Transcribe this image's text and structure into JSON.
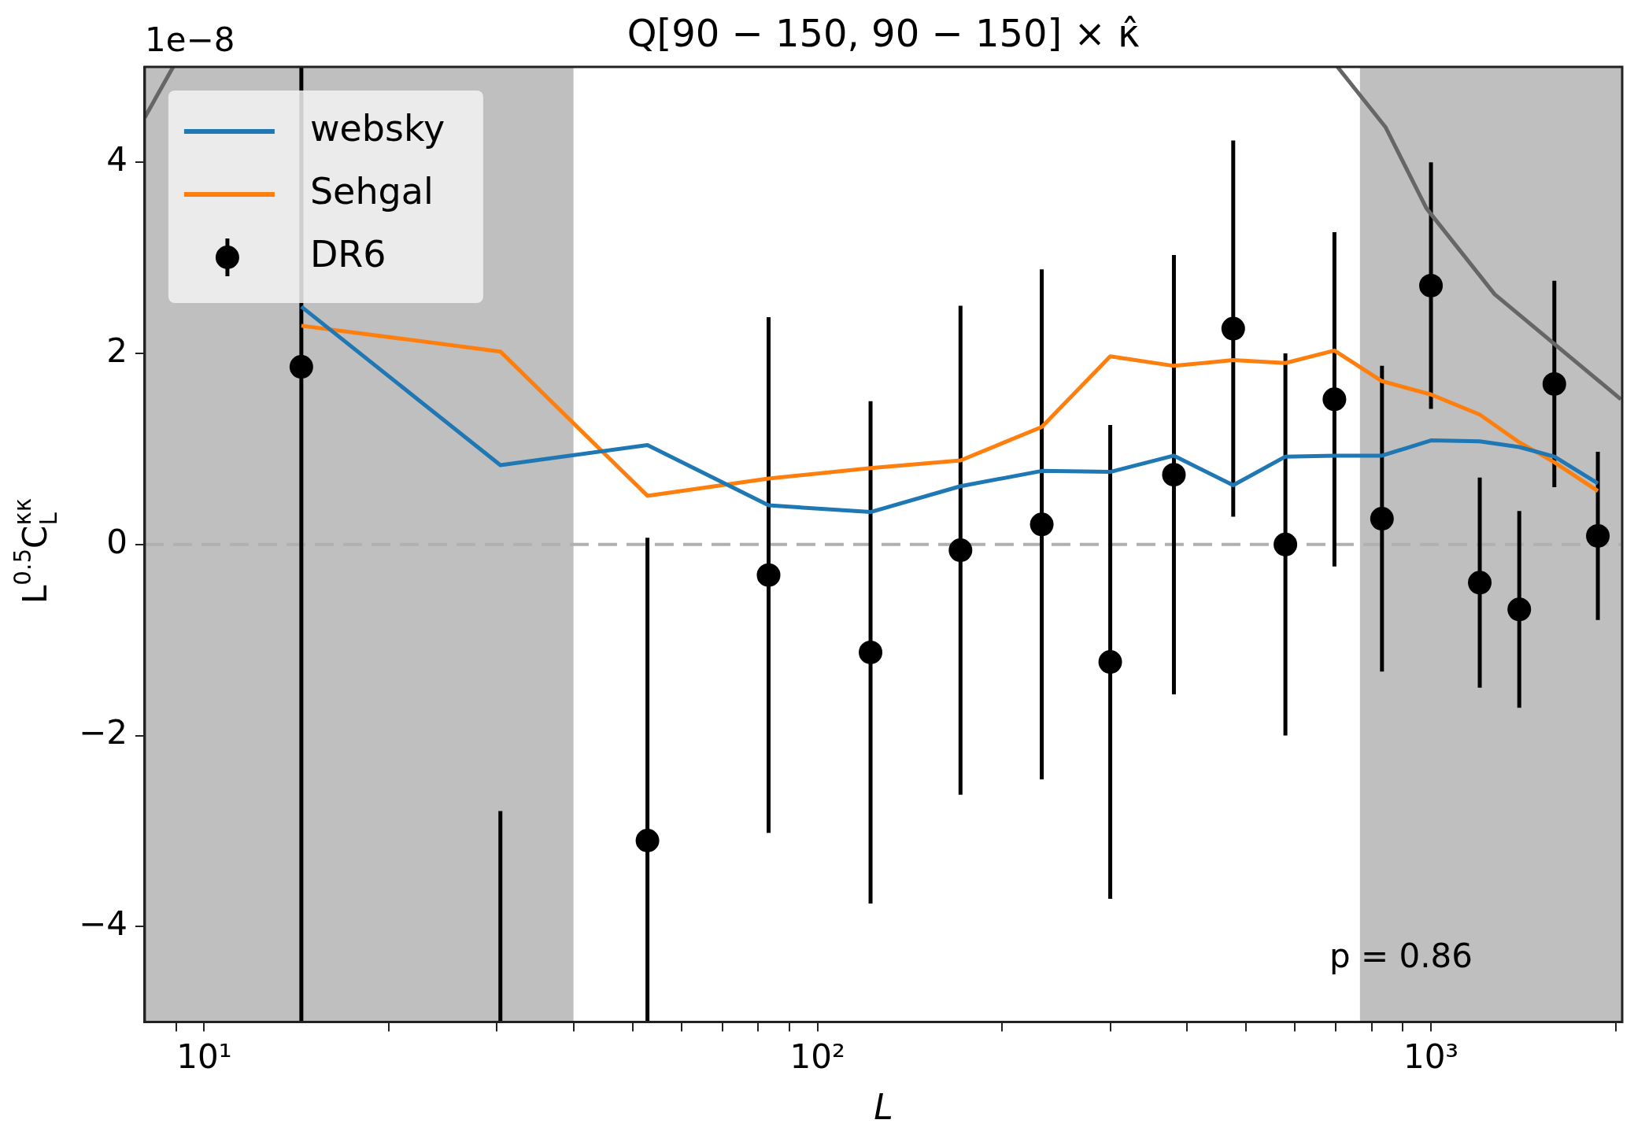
{
  "chart_data": {
    "type": "line",
    "title": "Q[90 − 150, 90 − 150] × κ̂",
    "xlabel": "L",
    "ylabel": "L$^{0.5}$C$_{L}$$^{κκ}$",
    "annotations": [
      "1e−8",
      "p = 0.86"
    ],
    "x": [
      14.4,
      30.4,
      52.8,
      83.2,
      122,
      171,
      232,
      300,
      381,
      476,
      579,
      696,
      832,
      1000,
      1201,
      1393,
      1589,
      1871
    ],
    "series": [
      {
        "name": "websky",
        "color": "#1f77b4",
        "values": [
          2.49,
          0.83,
          1.04,
          0.41,
          0.34,
          0.61,
          0.77,
          0.76,
          0.93,
          0.62,
          0.92,
          0.93,
          0.93,
          1.09,
          1.08,
          1.02,
          0.92,
          0.64
        ]
      },
      {
        "name": "Sehgal",
        "color": "#ff7f0e",
        "values": [
          2.29,
          2.02,
          0.51,
          0.69,
          0.8,
          0.88,
          1.23,
          1.97,
          1.87,
          1.93,
          1.9,
          2.03,
          1.71,
          1.57,
          1.36,
          1.07,
          0.86,
          0.56
        ]
      },
      {
        "name": "DR6",
        "type": "scatter",
        "marker": "circle",
        "color": "#000000",
        "values": [
          1.86,
          null,
          -3.1,
          -0.32,
          -1.13,
          -0.06,
          0.21,
          -1.23,
          0.73,
          2.26,
          0.0,
          1.52,
          0.27,
          2.71,
          -0.4,
          -0.68,
          1.68,
          0.09
        ],
        "errors": [
          null,
          null,
          null,
          2.7,
          2.63,
          2.56,
          2.67,
          2.48,
          2.3,
          1.97,
          2.0,
          1.75,
          1.6,
          1.29,
          1.1,
          1.03,
          1.08,
          0.88
        ]
      },
      {
        "color": "#000000",
        "x": [
          14.4,
          14.4
        ],
        "values": [
          -5,
          5
        ]
      },
      {
        "color": "#000000",
        "x": [
          30.4,
          30.4
        ],
        "values": [
          -5,
          -2.79
        ]
      },
      {
        "color": "#000000",
        "x": [
          52.8,
          52.8
        ],
        "values": [
          -5,
          0.07
        ]
      },
      {
        "color": "#666666",
        "x": [
          8,
          8.9
        ],
        "values": [
          4.47,
          5.0
        ]
      },
      {
        "color": "#666666",
        "x": [
          704,
          843,
          983,
          1270,
          2040
        ],
        "values": [
          5.0,
          4.37,
          3.52,
          2.62,
          1.52
        ]
      }
    ],
    "bands": [
      {
        "axis": "x",
        "from": 8,
        "to": 40,
        "color": "#bfbfbf"
      },
      {
        "axis": "x",
        "from": 766,
        "to": 2050,
        "color": "#bfbfbf"
      }
    ],
    "ref_lines": [
      {
        "axis": "y",
        "value": 0,
        "color": "#b0b0b0",
        "line_style": "dashed"
      }
    ],
    "log": "x",
    "xlim": [
      8,
      2050
    ],
    "xticks": [
      {
        "value": 9,
        "label": null
      },
      {
        "value": 10,
        "label": "10¹"
      },
      {
        "value": 20,
        "label": null
      },
      {
        "value": 30,
        "label": null
      },
      {
        "value": 40,
        "label": null
      },
      {
        "value": 50,
        "label": null
      },
      {
        "value": 60,
        "label": null
      },
      {
        "value": 70,
        "label": null
      },
      {
        "value": 80,
        "label": null
      },
      {
        "value": 90,
        "label": null
      },
      {
        "value": 100,
        "label": "10²"
      },
      {
        "value": 200,
        "label": null
      },
      {
        "value": 300,
        "label": null
      },
      {
        "value": 400,
        "label": null
      },
      {
        "value": 500,
        "label": null
      },
      {
        "value": 600,
        "label": null
      },
      {
        "value": 700,
        "label": null
      },
      {
        "value": 800,
        "label": null
      },
      {
        "value": 900,
        "label": null
      },
      {
        "value": 1000,
        "label": "10³"
      },
      {
        "value": 2000,
        "label": null
      }
    ],
    "ylim": [
      -5,
      5
    ],
    "yticks": [
      {
        "value": -4,
        "label": "−4"
      },
      {
        "value": -2,
        "label": "−2"
      },
      0,
      2,
      4
    ],
    "grid": false,
    "legend": "top left"
  }
}
